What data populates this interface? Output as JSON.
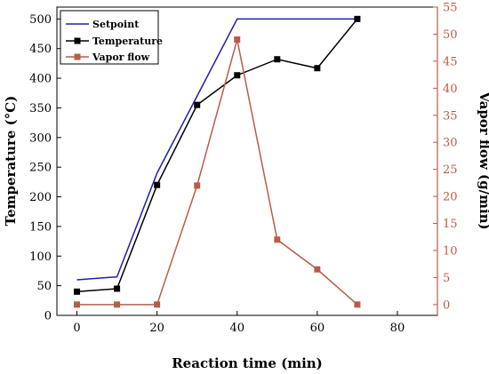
{
  "chart_data": {
    "type": "line",
    "title": "",
    "xlabel": "Reaction time (min)",
    "ylabel": "Temperature (°C)",
    "y2label": "Vapor flow (g/min)",
    "xlim": [
      -5,
      90
    ],
    "ylim": [
      0,
      520
    ],
    "y2lim": [
      -2,
      55
    ],
    "x_ticks": [
      0,
      20,
      40,
      60,
      80
    ],
    "y_ticks": [
      0,
      50,
      100,
      150,
      200,
      250,
      300,
      350,
      400,
      450,
      500
    ],
    "y2_ticks": [
      0,
      5,
      10,
      15,
      20,
      25,
      30,
      35,
      40,
      45,
      50,
      55
    ],
    "legend_position": "top-left",
    "grid": false,
    "series": [
      {
        "name": "Setpoint",
        "axis": "left",
        "color": "#1f1fb4",
        "marker": "none",
        "x": [
          0,
          10,
          20,
          30,
          40,
          50,
          60,
          70
        ],
        "y": [
          60,
          65,
          240,
          370,
          500,
          500,
          500,
          500
        ]
      },
      {
        "name": "Temperature",
        "axis": "left",
        "color": "#000000",
        "marker": "square",
        "x": [
          0,
          10,
          20,
          30,
          40,
          50,
          60,
          70
        ],
        "y": [
          40,
          45,
          220,
          355,
          405,
          432,
          417,
          500
        ]
      },
      {
        "name": "Vapor flow",
        "axis": "right",
        "color": "#b85c4a",
        "marker": "square",
        "x": [
          0,
          10,
          20,
          30,
          40,
          50,
          60,
          70
        ],
        "y": [
          0,
          0,
          0,
          22,
          49,
          12,
          6.5,
          0
        ]
      }
    ]
  }
}
